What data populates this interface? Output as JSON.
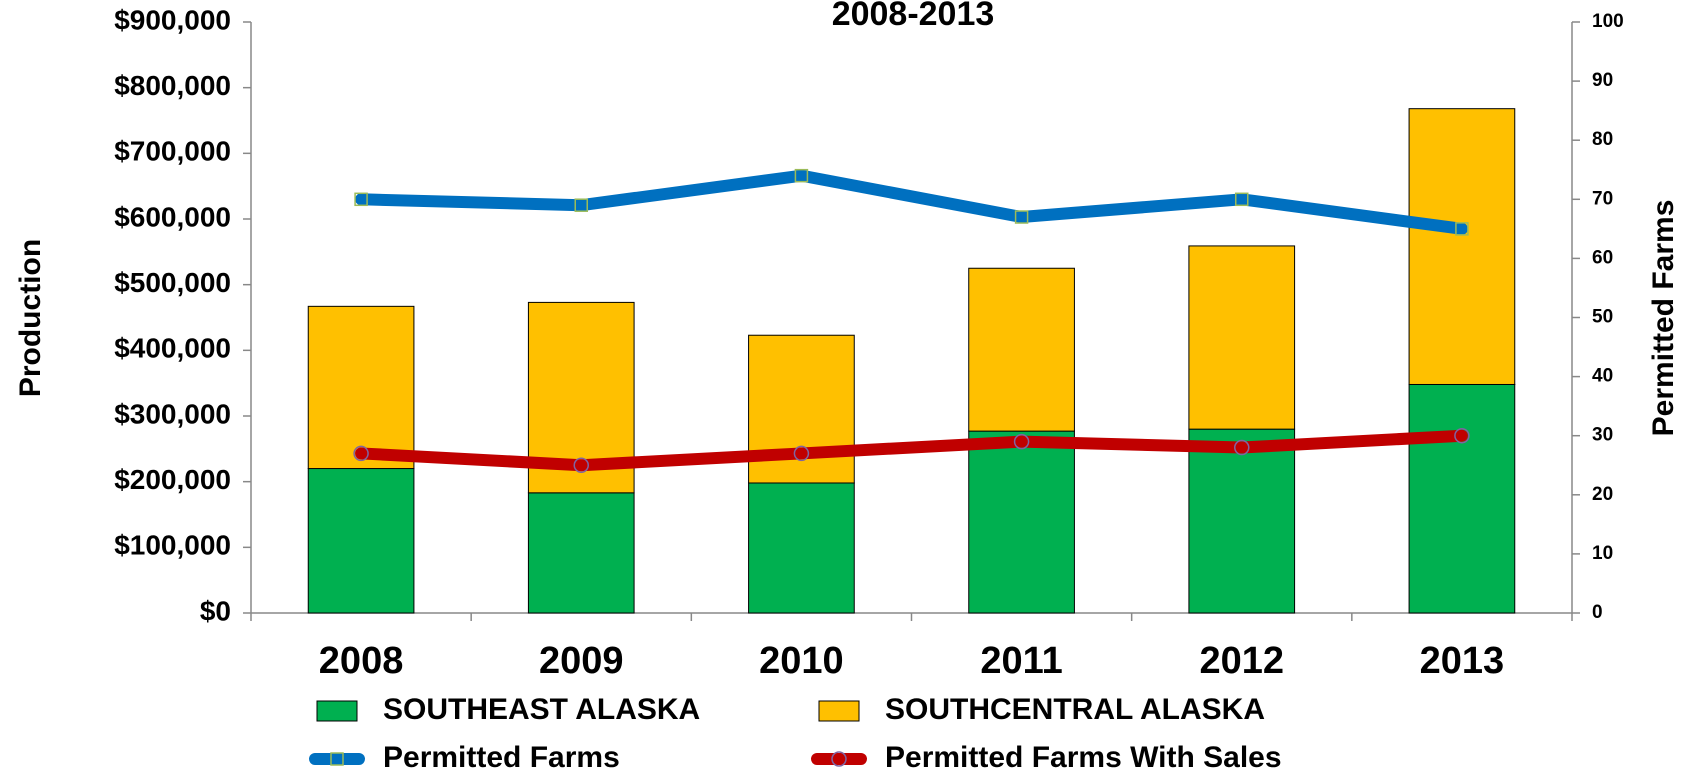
{
  "chart_data": {
    "type": "bar",
    "title": "2008-2013",
    "y_label": "Production",
    "y2_label": "Permitted Farms",
    "categories": [
      "2008",
      "2009",
      "2010",
      "2011",
      "2012",
      "2013"
    ],
    "series": [
      {
        "name": "SOUTHEAST ALASKA",
        "type": "bar",
        "color": "#00b050",
        "values": [
          220000,
          183000,
          198000,
          277000,
          280000,
          348000
        ]
      },
      {
        "name": "SOUTHCENTRAL ALASKA",
        "type": "bar",
        "color": "#ffc000",
        "values": [
          247000,
          290000,
          225000,
          248000,
          279000,
          420000
        ]
      },
      {
        "name": "Permitted Farms",
        "type": "line",
        "axis": "y2",
        "color": "#0070c0",
        "values": [
          70,
          69,
          74,
          67,
          70,
          65
        ]
      },
      {
        "name": "Permitted Farms With Sales",
        "type": "line",
        "axis": "y2",
        "color": "#c00000",
        "values": [
          27,
          25,
          27,
          29,
          28,
          30
        ]
      }
    ],
    "ylim": [
      0,
      900000
    ],
    "yticks": [
      {
        "value": 0,
        "label": "$0"
      },
      {
        "value": 100000,
        "label": "$100,000"
      },
      {
        "value": 200000,
        "label": "$200,000"
      },
      {
        "value": 300000,
        "label": "$300,000"
      },
      {
        "value": 400000,
        "label": "$400,000"
      },
      {
        "value": 500000,
        "label": "$500,000"
      },
      {
        "value": 600000,
        "label": "$600,000"
      },
      {
        "value": 700000,
        "label": "$700,000"
      },
      {
        "value": 800000,
        "label": "$800,000"
      },
      {
        "value": 900000,
        "label": "$900,000"
      }
    ],
    "y2lim": [
      0,
      100
    ],
    "y2ticks": [
      0,
      10,
      20,
      30,
      40,
      50,
      60,
      70,
      80,
      90,
      100
    ],
    "stacked": true,
    "grid": false,
    "legend": "bottom"
  }
}
